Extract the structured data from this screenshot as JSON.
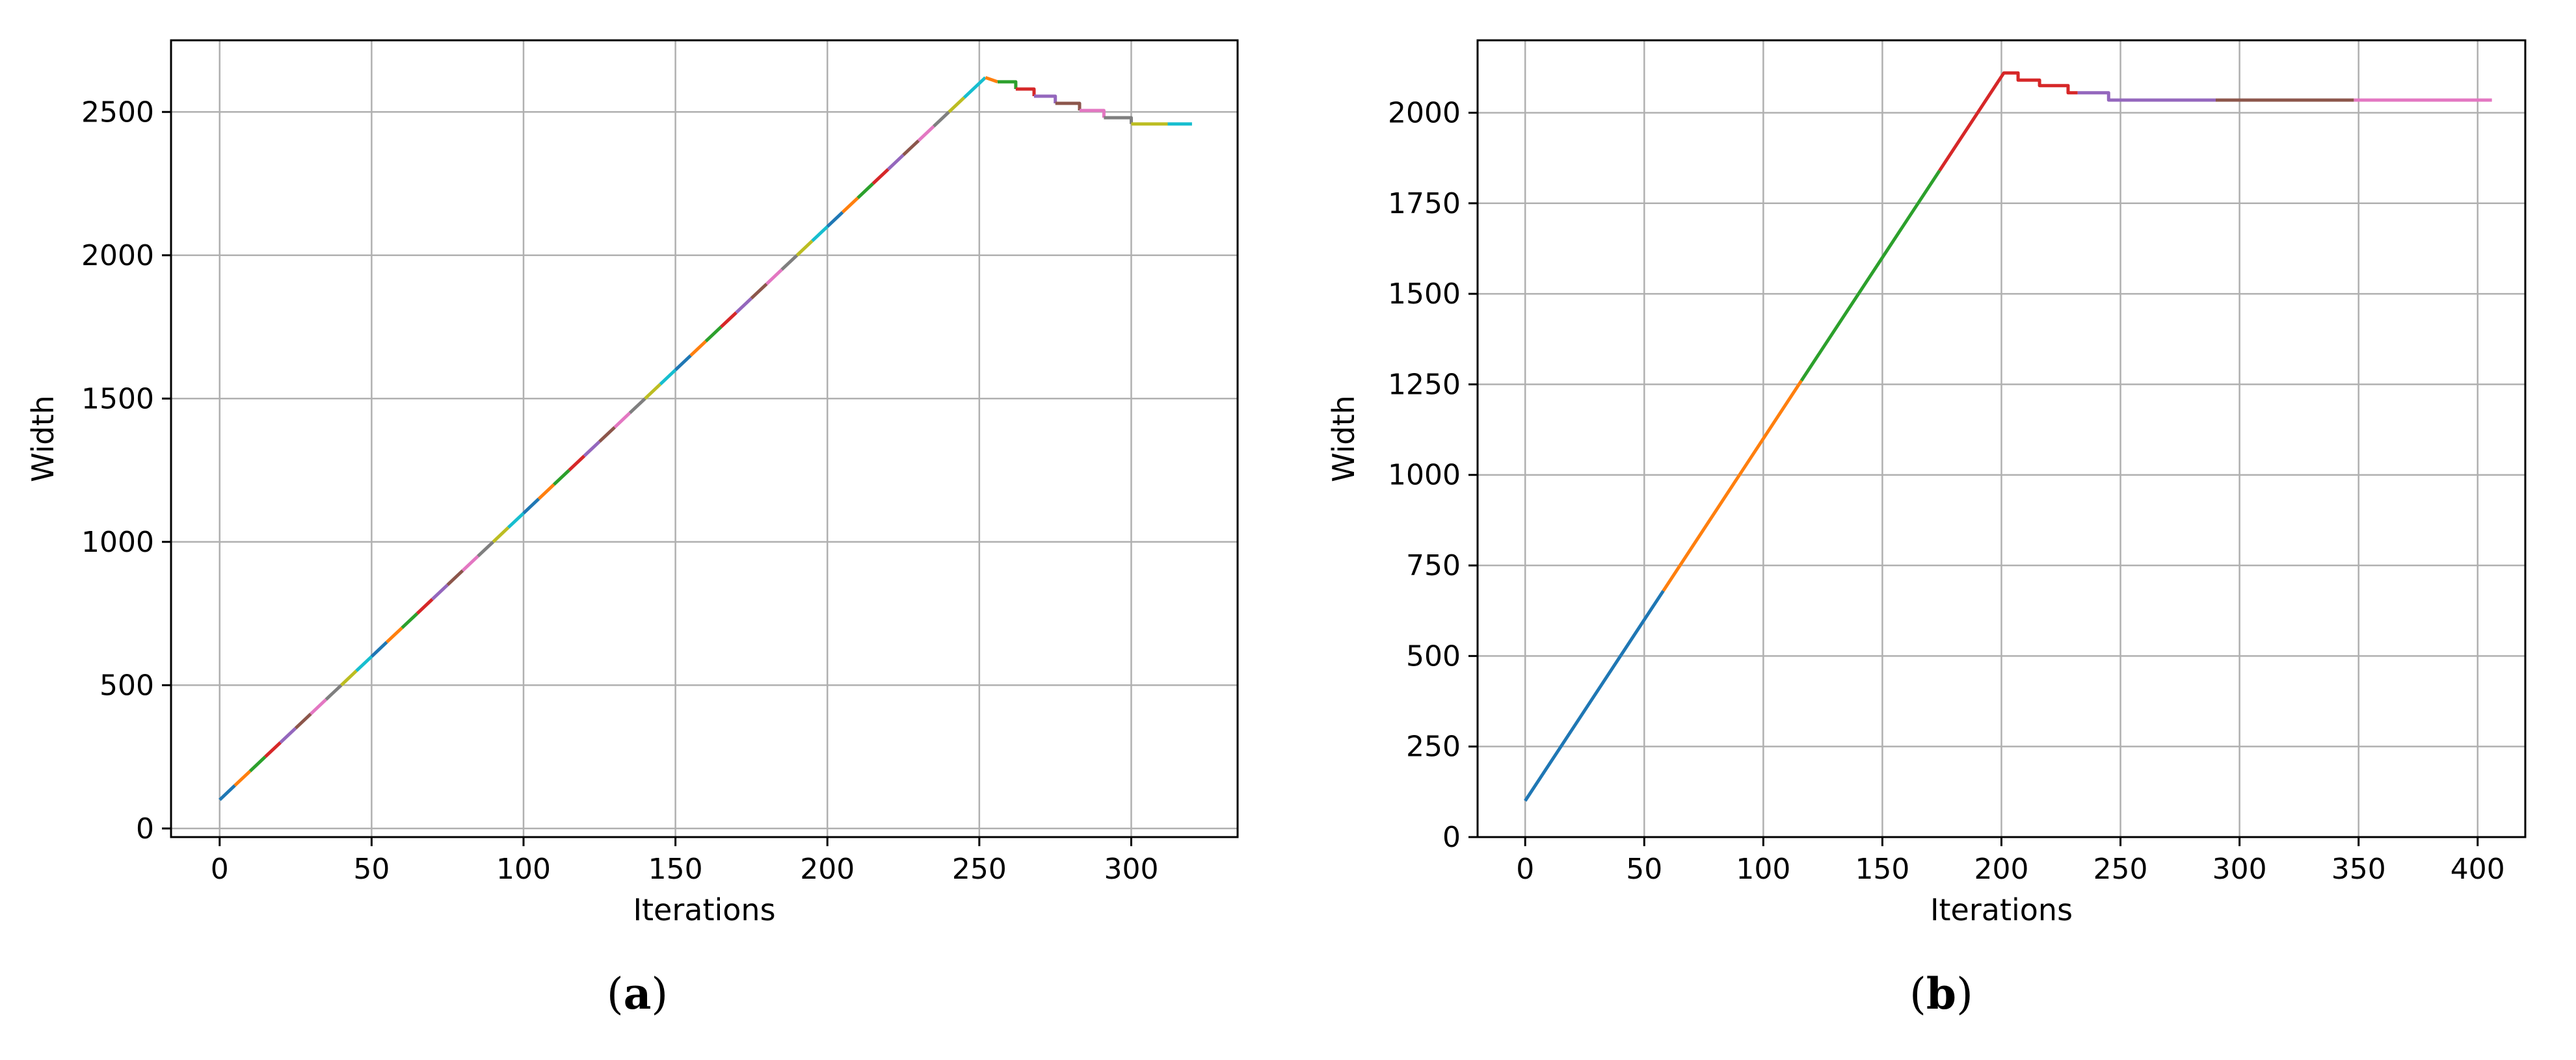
{
  "captions": [
    "a",
    "b"
  ],
  "chart_data": [
    {
      "type": "line",
      "title": "",
      "xlabel": "Iterations",
      "ylabel": "Width",
      "xlim": [
        -16,
        335
      ],
      "ylim": [
        -30,
        2750
      ],
      "xticks": [
        0,
        50,
        100,
        150,
        200,
        250,
        300
      ],
      "yticks": [
        0,
        500,
        1000,
        1500,
        2000,
        2500
      ],
      "grid": true,
      "legend": "none",
      "series": [
        {
          "color": "#1f77b4",
          "points": [
            [
              0,
              100
            ],
            [
              5,
              150
            ]
          ]
        },
        {
          "color": "#ff7f0e",
          "points": [
            [
              5,
              150
            ],
            [
              10,
              200
            ]
          ]
        },
        {
          "color": "#2ca02c",
          "points": [
            [
              10,
              200
            ],
            [
              15,
              250
            ]
          ]
        },
        {
          "color": "#d62728",
          "points": [
            [
              15,
              250
            ],
            [
              20,
              300
            ]
          ]
        },
        {
          "color": "#9467bd",
          "points": [
            [
              20,
              300
            ],
            [
              25,
              350
            ]
          ]
        },
        {
          "color": "#8c564b",
          "points": [
            [
              25,
              350
            ],
            [
              30,
              400
            ]
          ]
        },
        {
          "color": "#e377c2",
          "points": [
            [
              30,
              400
            ],
            [
              35,
              450
            ]
          ]
        },
        {
          "color": "#7f7f7f",
          "points": [
            [
              35,
              450
            ],
            [
              40,
              500
            ]
          ]
        },
        {
          "color": "#bcbd22",
          "points": [
            [
              40,
              500
            ],
            [
              45,
              550
            ]
          ]
        },
        {
          "color": "#17becf",
          "points": [
            [
              45,
              550
            ],
            [
              50,
              600
            ]
          ]
        },
        {
          "color": "#1f77b4",
          "points": [
            [
              50,
              600
            ],
            [
              55,
              650
            ]
          ]
        },
        {
          "color": "#ff7f0e",
          "points": [
            [
              55,
              650
            ],
            [
              60,
              700
            ]
          ]
        },
        {
          "color": "#2ca02c",
          "points": [
            [
              60,
              700
            ],
            [
              65,
              750
            ]
          ]
        },
        {
          "color": "#d62728",
          "points": [
            [
              65,
              750
            ],
            [
              70,
              800
            ]
          ]
        },
        {
          "color": "#9467bd",
          "points": [
            [
              70,
              800
            ],
            [
              75,
              850
            ]
          ]
        },
        {
          "color": "#8c564b",
          "points": [
            [
              75,
              850
            ],
            [
              80,
              900
            ]
          ]
        },
        {
          "color": "#e377c2",
          "points": [
            [
              80,
              900
            ],
            [
              85,
              950
            ]
          ]
        },
        {
          "color": "#7f7f7f",
          "points": [
            [
              85,
              950
            ],
            [
              90,
              1000
            ]
          ]
        },
        {
          "color": "#bcbd22",
          "points": [
            [
              90,
              1000
            ],
            [
              95,
              1050
            ]
          ]
        },
        {
          "color": "#17becf",
          "points": [
            [
              95,
              1050
            ],
            [
              100,
              1100
            ]
          ]
        },
        {
          "color": "#1f77b4",
          "points": [
            [
              100,
              1100
            ],
            [
              105,
              1150
            ]
          ]
        },
        {
          "color": "#ff7f0e",
          "points": [
            [
              105,
              1150
            ],
            [
              110,
              1200
            ]
          ]
        },
        {
          "color": "#2ca02c",
          "points": [
            [
              110,
              1200
            ],
            [
              115,
              1250
            ]
          ]
        },
        {
          "color": "#d62728",
          "points": [
            [
              115,
              1250
            ],
            [
              120,
              1300
            ]
          ]
        },
        {
          "color": "#9467bd",
          "points": [
            [
              120,
              1300
            ],
            [
              125,
              1350
            ]
          ]
        },
        {
          "color": "#8c564b",
          "points": [
            [
              125,
              1350
            ],
            [
              130,
              1400
            ]
          ]
        },
        {
          "color": "#e377c2",
          "points": [
            [
              130,
              1400
            ],
            [
              135,
              1450
            ]
          ]
        },
        {
          "color": "#7f7f7f",
          "points": [
            [
              135,
              1450
            ],
            [
              140,
              1500
            ]
          ]
        },
        {
          "color": "#bcbd22",
          "points": [
            [
              140,
              1500
            ],
            [
              145,
              1550
            ]
          ]
        },
        {
          "color": "#17becf",
          "points": [
            [
              145,
              1550
            ],
            [
              150,
              1600
            ]
          ]
        },
        {
          "color": "#1f77b4",
          "points": [
            [
              150,
              1600
            ],
            [
              155,
              1650
            ]
          ]
        },
        {
          "color": "#ff7f0e",
          "points": [
            [
              155,
              1650
            ],
            [
              160,
              1700
            ]
          ]
        },
        {
          "color": "#2ca02c",
          "points": [
            [
              160,
              1700
            ],
            [
              165,
              1750
            ]
          ]
        },
        {
          "color": "#d62728",
          "points": [
            [
              165,
              1750
            ],
            [
              170,
              1800
            ]
          ]
        },
        {
          "color": "#9467bd",
          "points": [
            [
              170,
              1800
            ],
            [
              175,
              1850
            ]
          ]
        },
        {
          "color": "#8c564b",
          "points": [
            [
              175,
              1850
            ],
            [
              180,
              1900
            ]
          ]
        },
        {
          "color": "#e377c2",
          "points": [
            [
              180,
              1900
            ],
            [
              185,
              1950
            ]
          ]
        },
        {
          "color": "#7f7f7f",
          "points": [
            [
              185,
              1950
            ],
            [
              190,
              2000
            ]
          ]
        },
        {
          "color": "#bcbd22",
          "points": [
            [
              190,
              2000
            ],
            [
              195,
              2050
            ]
          ]
        },
        {
          "color": "#17becf",
          "points": [
            [
              195,
              2050
            ],
            [
              200,
              2100
            ]
          ]
        },
        {
          "color": "#1f77b4",
          "points": [
            [
              200,
              2100
            ],
            [
              205,
              2150
            ]
          ]
        },
        {
          "color": "#ff7f0e",
          "points": [
            [
              205,
              2150
            ],
            [
              210,
              2200
            ]
          ]
        },
        {
          "color": "#2ca02c",
          "points": [
            [
              210,
              2200
            ],
            [
              215,
              2250
            ]
          ]
        },
        {
          "color": "#d62728",
          "points": [
            [
              215,
              2250
            ],
            [
              220,
              2300
            ]
          ]
        },
        {
          "color": "#9467bd",
          "points": [
            [
              220,
              2300
            ],
            [
              225,
              2350
            ]
          ]
        },
        {
          "color": "#8c564b",
          "points": [
            [
              225,
              2350
            ],
            [
              230,
              2400
            ]
          ]
        },
        {
          "color": "#e377c2",
          "points": [
            [
              230,
              2400
            ],
            [
              235,
              2450
            ]
          ]
        },
        {
          "color": "#7f7f7f",
          "points": [
            [
              235,
              2450
            ],
            [
              240,
              2500
            ]
          ]
        },
        {
          "color": "#bcbd22",
          "points": [
            [
              240,
              2500
            ],
            [
              245,
              2550
            ]
          ]
        },
        {
          "color": "#17becf",
          "points": [
            [
              245,
              2550
            ],
            [
              252,
              2620
            ]
          ]
        },
        {
          "color": "#ff7f0e",
          "points": [
            [
              252,
              2620
            ],
            [
              256,
              2605
            ]
          ]
        },
        {
          "color": "#2ca02c",
          "points": [
            [
              256,
              2605
            ],
            [
              262,
              2605
            ],
            [
              262,
              2580
            ]
          ]
        },
        {
          "color": "#d62728",
          "points": [
            [
              262,
              2580
            ],
            [
              268,
              2580
            ],
            [
              268,
              2555
            ]
          ]
        },
        {
          "color": "#9467bd",
          "points": [
            [
              268,
              2555
            ],
            [
              275,
              2555
            ],
            [
              275,
              2530
            ]
          ]
        },
        {
          "color": "#8c564b",
          "points": [
            [
              275,
              2530
            ],
            [
              283,
              2530
            ],
            [
              283,
              2505
            ]
          ]
        },
        {
          "color": "#e377c2",
          "points": [
            [
              283,
              2505
            ],
            [
              291,
              2505
            ],
            [
              291,
              2480
            ]
          ]
        },
        {
          "color": "#7f7f7f",
          "points": [
            [
              291,
              2480
            ],
            [
              300,
              2480
            ],
            [
              300,
              2458
            ]
          ]
        },
        {
          "color": "#bcbd22",
          "points": [
            [
              300,
              2458
            ],
            [
              312,
              2458
            ]
          ]
        },
        {
          "color": "#17becf",
          "points": [
            [
              312,
              2458
            ],
            [
              320,
              2458
            ]
          ]
        }
      ]
    },
    {
      "type": "line",
      "title": "",
      "xlabel": "Iterations",
      "ylabel": "Width",
      "xlim": [
        -20,
        420
      ],
      "ylim": [
        0,
        2200
      ],
      "xticks": [
        0,
        50,
        100,
        150,
        200,
        250,
        300,
        350,
        400
      ],
      "yticks": [
        0,
        250,
        500,
        750,
        1000,
        1250,
        1500,
        1750,
        2000
      ],
      "grid": true,
      "legend": "none",
      "series": [
        {
          "color": "#1f77b4",
          "points": [
            [
              0,
              100
            ],
            [
              58,
              680
            ]
          ]
        },
        {
          "color": "#ff7f0e",
          "points": [
            [
              58,
              680
            ],
            [
              116,
              1260
            ]
          ]
        },
        {
          "color": "#2ca02c",
          "points": [
            [
              116,
              1260
            ],
            [
              174,
              1840
            ]
          ]
        },
        {
          "color": "#d62728",
          "points": [
            [
              174,
              1840
            ],
            [
              201,
              2110
            ],
            [
              207,
              2110
            ],
            [
              207,
              2090
            ],
            [
              216,
              2090
            ],
            [
              216,
              2075
            ],
            [
              228,
              2075
            ],
            [
              228,
              2055
            ],
            [
              232,
              2055
            ]
          ]
        },
        {
          "color": "#9467bd",
          "points": [
            [
              232,
              2055
            ],
            [
              245,
              2055
            ],
            [
              245,
              2035
            ],
            [
              290,
              2035
            ]
          ]
        },
        {
          "color": "#8c564b",
          "points": [
            [
              290,
              2035
            ],
            [
              348,
              2035
            ]
          ]
        },
        {
          "color": "#e377c2",
          "points": [
            [
              348,
              2035
            ],
            [
              406,
              2035
            ]
          ]
        }
      ]
    }
  ]
}
